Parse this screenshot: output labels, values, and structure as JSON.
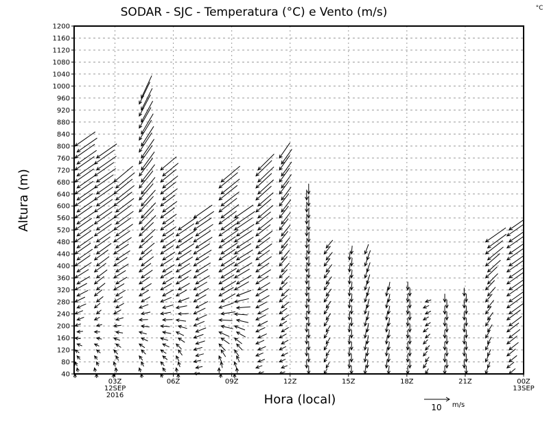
{
  "chart_data": {
    "type": "vector-profile",
    "title": "SODAR - SJC - Temperatura (°C) e Vento (m/s)",
    "corner_label": "°C",
    "xlabel": "Hora (local)",
    "ylabel": "Altura (m)",
    "ylim": [
      40,
      1200
    ],
    "y_step": 40,
    "xlim_hours": [
      0.9,
      24
    ],
    "x_ticks": [
      {
        "hour": 3,
        "label": "03Z",
        "sub1": "12SEP",
        "sub2": "2016"
      },
      {
        "hour": 6,
        "label": "06Z"
      },
      {
        "hour": 9,
        "label": "09Z"
      },
      {
        "hour": 12,
        "label": "12Z"
      },
      {
        "hour": 15,
        "label": "15Z"
      },
      {
        "hour": 18,
        "label": "18Z"
      },
      {
        "hour": 21,
        "label": "21Z"
      },
      {
        "hour": 24,
        "label": "00Z",
        "sub1": "13SEP"
      }
    ],
    "grid": true,
    "reference_vector": {
      "value": "10",
      "unit": "m/s",
      "speed": 10
    },
    "level_step_m": 20,
    "profiles_note": "each profile: hour, top height (m), keypoints [height m, speed m/s, arrow direction deg (0=east, 90=north)]",
    "profiles": [
      {
        "hour": 1.0,
        "top": 800,
        "keys": [
          [
            40,
            2,
            90
          ],
          [
            200,
            3,
            200
          ],
          [
            400,
            9,
            215
          ],
          [
            800,
            12,
            215
          ]
        ]
      },
      {
        "hour": 2.0,
        "top": 760,
        "keys": [
          [
            40,
            2,
            90
          ],
          [
            240,
            3,
            220
          ],
          [
            480,
            10,
            215
          ],
          [
            760,
            12,
            215
          ]
        ]
      },
      {
        "hour": 3.0,
        "top": 680,
        "keys": [
          [
            40,
            2,
            80
          ],
          [
            240,
            4,
            210
          ],
          [
            500,
            10,
            215
          ],
          [
            680,
            12,
            220
          ]
        ]
      },
      {
        "hour": 4.3,
        "top": 960,
        "keys": [
          [
            40,
            2,
            100
          ],
          [
            280,
            5,
            210
          ],
          [
            520,
            10,
            225
          ],
          [
            960,
            12,
            245
          ]
        ]
      },
      {
        "hour": 5.4,
        "top": 720,
        "keys": [
          [
            40,
            2,
            120
          ],
          [
            300,
            6,
            210
          ],
          [
            720,
            10,
            220
          ]
        ]
      },
      {
        "hour": 6.2,
        "top": 520,
        "keys": [
          [
            40,
            2,
            90
          ],
          [
            300,
            6,
            210
          ],
          [
            520,
            11,
            215
          ]
        ]
      },
      {
        "hour": 7.1,
        "top": 560,
        "keys": [
          [
            40,
            3,
            190
          ],
          [
            280,
            7,
            210
          ],
          [
            560,
            11,
            215
          ]
        ]
      },
      {
        "hour": 8.4,
        "top": 680,
        "keys": [
          [
            40,
            2,
            80
          ],
          [
            280,
            8,
            210
          ],
          [
            680,
            12,
            220
          ]
        ]
      },
      {
        "hour": 9.2,
        "top": 560,
        "keys": [
          [
            40,
            2,
            90
          ],
          [
            320,
            8,
            210
          ],
          [
            560,
            11,
            215
          ]
        ]
      },
      {
        "hour": 10.3,
        "top": 720,
        "keys": [
          [
            40,
            3,
            200
          ],
          [
            400,
            8,
            215
          ],
          [
            720,
            11,
            225
          ]
        ]
      },
      {
        "hour": 11.5,
        "top": 760,
        "keys": [
          [
            40,
            3,
            200
          ],
          [
            400,
            6,
            230
          ],
          [
            760,
            9,
            235
          ]
        ]
      },
      {
        "hour": 12.9,
        "top": 640,
        "keys": [
          [
            40,
            4,
            270
          ],
          [
            500,
            5,
            268
          ],
          [
            640,
            5,
            270
          ]
        ]
      },
      {
        "hour": 13.8,
        "top": 460,
        "keys": [
          [
            40,
            3,
            240
          ],
          [
            460,
            5,
            230
          ]
        ]
      },
      {
        "hour": 15.1,
        "top": 440,
        "keys": [
          [
            40,
            4,
            270
          ],
          [
            440,
            4,
            265
          ]
        ]
      },
      {
        "hour": 15.9,
        "top": 440,
        "keys": [
          [
            40,
            4,
            265
          ],
          [
            440,
            5,
            250
          ]
        ]
      },
      {
        "hour": 17.0,
        "top": 320,
        "keys": [
          [
            40,
            4,
            265
          ],
          [
            320,
            4,
            260
          ]
        ]
      },
      {
        "hour": 18.1,
        "top": 320,
        "keys": [
          [
            40,
            4,
            270
          ],
          [
            320,
            4,
            270
          ]
        ]
      },
      {
        "hour": 18.9,
        "top": 280,
        "keys": [
          [
            40,
            3,
            240
          ],
          [
            280,
            3,
            200
          ]
        ]
      },
      {
        "hour": 20.0,
        "top": 280,
        "keys": [
          [
            40,
            4,
            270
          ],
          [
            280,
            4,
            270
          ]
        ]
      },
      {
        "hour": 21.0,
        "top": 300,
        "keys": [
          [
            40,
            4,
            270
          ],
          [
            300,
            4,
            270
          ]
        ]
      },
      {
        "hour": 22.1,
        "top": 480,
        "keys": [
          [
            40,
            3,
            250
          ],
          [
            280,
            5,
            230
          ],
          [
            480,
            12,
            215
          ]
        ]
      },
      {
        "hour": 23.2,
        "top": 520,
        "keys": [
          [
            40,
            4,
            220
          ],
          [
            300,
            10,
            215
          ],
          [
            520,
            14,
            215
          ]
        ]
      }
    ]
  }
}
